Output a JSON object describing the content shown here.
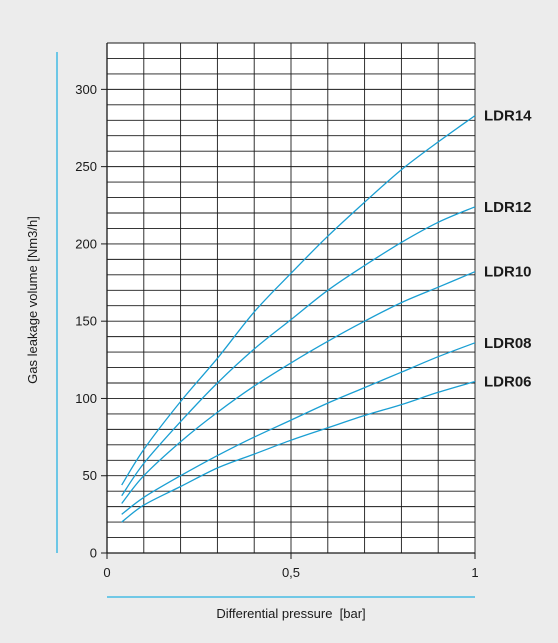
{
  "chart_data": {
    "type": "line",
    "title": "",
    "xlabel": "Differential pressure  [bar]",
    "ylabel": "Gas leakage volume [Nm3/h]",
    "xlim": [
      0,
      1
    ],
    "ylim": [
      0,
      330
    ],
    "x_ticks": [
      {
        "value": 0,
        "label": "0"
      },
      {
        "value": 0.5,
        "label": "0,5"
      },
      {
        "value": 1,
        "label": "1"
      }
    ],
    "y_ticks": [
      {
        "value": 0,
        "label": "0"
      },
      {
        "value": 50,
        "label": "50"
      },
      {
        "value": 100,
        "label": "100"
      },
      {
        "value": 150,
        "label": "150"
      },
      {
        "value": 200,
        "label": "200"
      },
      {
        "value": 250,
        "label": "250"
      },
      {
        "value": 300,
        "label": "300"
      }
    ],
    "grid": true,
    "x_grid_step": 0.1,
    "y_grid_step": 10,
    "series": [
      {
        "name": "LDR14",
        "x": [
          0.04,
          0.1,
          0.2,
          0.3,
          0.4,
          0.5,
          0.6,
          0.7,
          0.8,
          0.9,
          1.0
        ],
        "values": [
          44,
          67,
          98,
          126,
          156,
          181,
          205,
          227,
          248,
          266,
          283
        ]
      },
      {
        "name": "LDR12",
        "x": [
          0.04,
          0.1,
          0.2,
          0.3,
          0.4,
          0.5,
          0.6,
          0.7,
          0.8,
          0.9,
          1.0
        ],
        "values": [
          37,
          58,
          85,
          110,
          132,
          151,
          170,
          186,
          201,
          214,
          224
        ]
      },
      {
        "name": "LDR10",
        "x": [
          0.04,
          0.1,
          0.2,
          0.3,
          0.4,
          0.5,
          0.6,
          0.7,
          0.8,
          0.9,
          1.0
        ],
        "values": [
          32,
          50,
          72,
          91,
          108,
          123,
          137,
          150,
          162,
          172,
          182
        ]
      },
      {
        "name": "LDR08",
        "x": [
          0.04,
          0.1,
          0.2,
          0.3,
          0.4,
          0.5,
          0.6,
          0.7,
          0.8,
          0.9,
          1.0
        ],
        "values": [
          25,
          36,
          50,
          63,
          75,
          86,
          97,
          107,
          117,
          127,
          136
        ]
      },
      {
        "name": "LDR06",
        "x": [
          0.04,
          0.1,
          0.2,
          0.3,
          0.4,
          0.5,
          0.6,
          0.7,
          0.8,
          0.9,
          1.0
        ],
        "values": [
          20,
          31,
          43,
          55,
          64,
          73,
          81,
          89,
          96,
          104,
          111
        ]
      }
    ],
    "colors": {
      "curve": "#1a9fd3",
      "accent_rule": "#27b3e3",
      "grid": "#1a1a1a",
      "text": "#1a1a1a",
      "background": "#ececec",
      "plot_background": "#ffffff"
    }
  }
}
